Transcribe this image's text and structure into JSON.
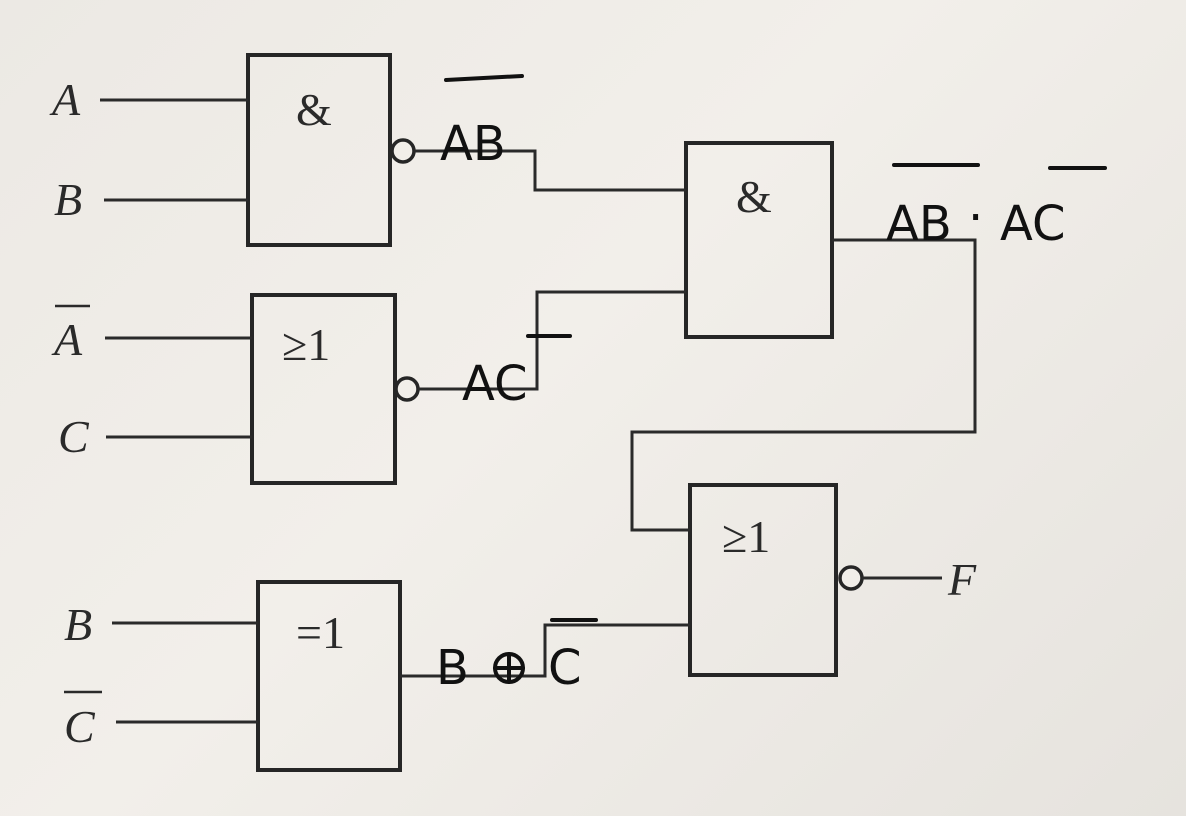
{
  "inputs": {
    "a": "A",
    "b1": "B",
    "a_bar": "A",
    "c": "C",
    "b2": "B",
    "c_bar": "C"
  },
  "gates": {
    "nand_ab": "&",
    "nor_ac": "≥1",
    "xnor_bc": "=1",
    "nand_out": "&",
    "nor_final": "≥1"
  },
  "annotations": {
    "ab": "AB",
    "ac": "AC",
    "combo_left": "AB",
    "combo_dot": "·",
    "combo_right": "AC",
    "xor_b": "B",
    "xor_c": "C"
  },
  "output": {
    "f": "F"
  }
}
